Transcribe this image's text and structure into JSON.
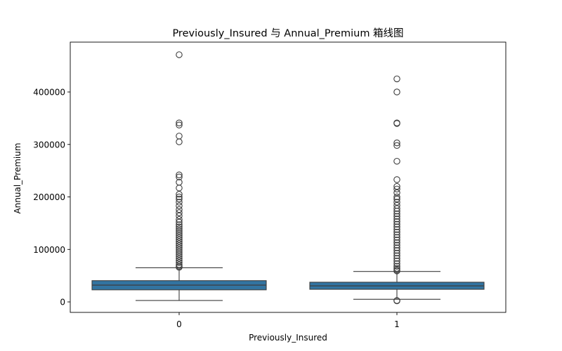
{
  "chart_data": {
    "type": "box",
    "title": "Previously_Insured 与 Annual_Premium 箱线图",
    "xlabel": "Previously_Insured",
    "ylabel": "Annual_Premium",
    "ylim": [
      -20000,
      495000
    ],
    "yticks": [
      0,
      100000,
      200000,
      300000,
      400000
    ],
    "ytick_labels": [
      "0",
      "100000",
      "200000",
      "300000",
      "400000"
    ],
    "categories": [
      "0",
      "1"
    ],
    "box_color": "#3274a1",
    "line_color": "#3d3d3d",
    "boxes": [
      {
        "category": "0",
        "whisker_low": 2630,
        "q1": 23000,
        "median": 32000,
        "q3": 40500,
        "whisker_high": 65000,
        "outliers": [
          471000,
          341000,
          337000,
          316000,
          305000,
          242000,
          238000,
          228000,
          217000,
          205000,
          200000,
          196000,
          190000,
          183000,
          176000,
          170000,
          164000,
          157000,
          152000,
          147000,
          143000,
          139000,
          135000,
          131000,
          127000,
          123000,
          119000,
          115000,
          111000,
          107000,
          103000,
          99000,
          95000,
          91000,
          87000,
          83000,
          79000,
          75000,
          71000,
          68000,
          66000
        ]
      },
      {
        "category": "1",
        "whisker_low": 5000,
        "q1": 24000,
        "median": 30500,
        "q3": 37500,
        "whisker_high": 58000,
        "outliers": [
          425000,
          400000,
          341000,
          340000,
          303000,
          298000,
          268000,
          233000,
          220000,
          215000,
          208000,
          200000,
          196000,
          190000,
          184000,
          178000,
          173000,
          168000,
          163000,
          158000,
          153000,
          148000,
          143000,
          138000,
          133000,
          128000,
          123000,
          118000,
          113000,
          108000,
          103000,
          98000,
          93000,
          88000,
          83000,
          78000,
          73000,
          68000,
          64000,
          61000,
          59000,
          2630,
          2000
        ]
      }
    ]
  }
}
